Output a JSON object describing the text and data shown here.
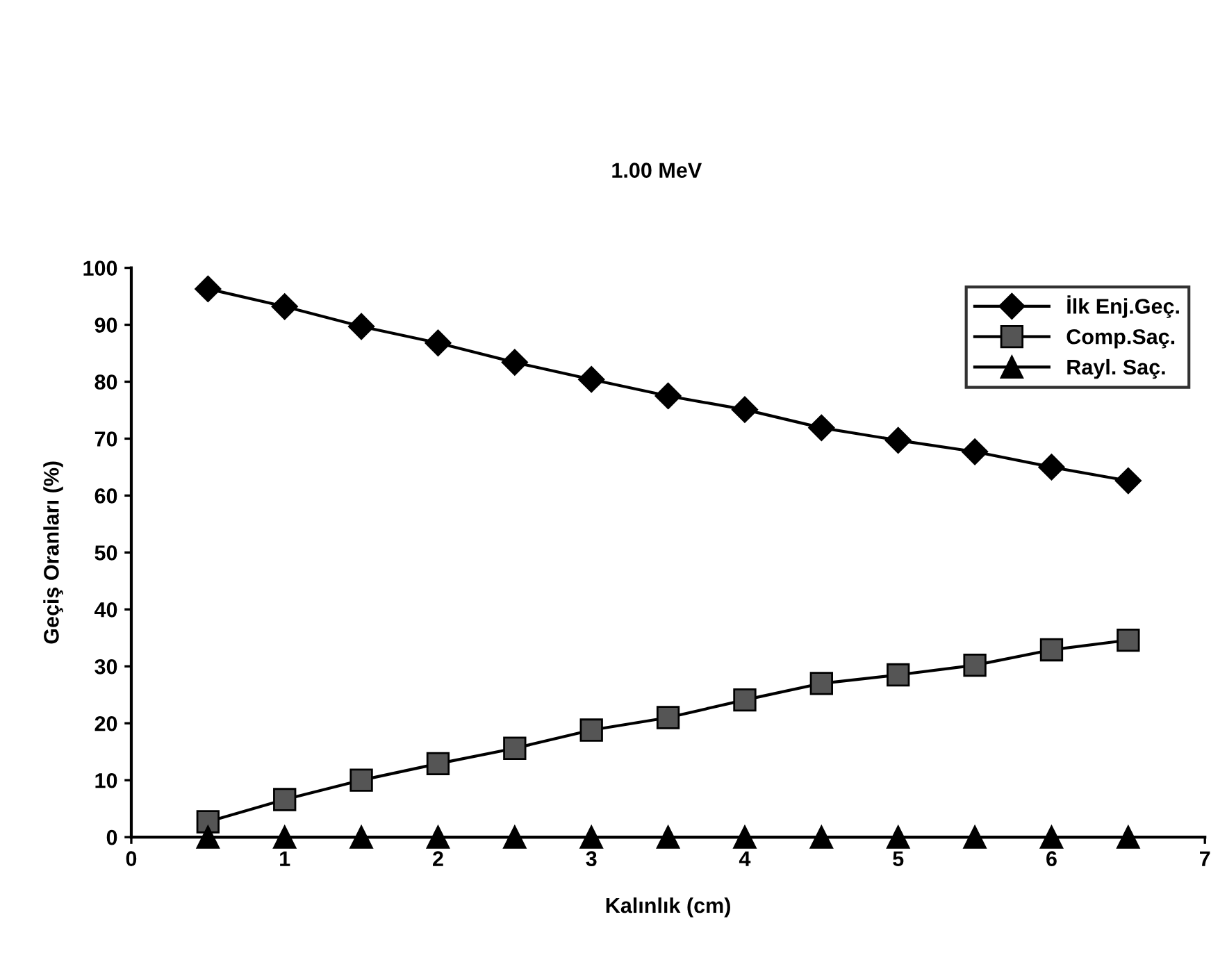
{
  "chart_data": {
    "type": "line",
    "title": "1.00 MeV",
    "xlabel": "Kalınlık (cm)",
    "ylabel": "Geçiş Oranları (%)",
    "x": [
      0.5,
      1,
      1.5,
      2,
      2.5,
      3,
      3.5,
      4,
      4.5,
      5,
      5.5,
      6,
      6.5
    ],
    "series": [
      {
        "name": "İlk Enj.Geç.",
        "color": "#000000",
        "marker": "diamond",
        "values": [
          96.3,
          93.2,
          89.7,
          86.8,
          83.4,
          80.4,
          77.5,
          75.1,
          71.9,
          69.7,
          67.7,
          65.0,
          62.6
        ]
      },
      {
        "name": "Comp.Saç.",
        "color": "#000000",
        "marker": "square",
        "values": [
          2.7,
          6.6,
          10,
          12.9,
          15.6,
          18.8,
          21,
          24.1,
          27,
          28.5,
          30.2,
          32.9,
          34.6
        ]
      },
      {
        "name": "Rayl. Saç.",
        "color": "#000000",
        "marker": "triangle",
        "values": [
          0,
          0,
          0,
          0,
          0,
          0,
          0,
          0,
          0,
          0,
          0,
          0,
          0
        ]
      }
    ],
    "xlim": [
      0,
      7
    ],
    "ylim": [
      0,
      100
    ],
    "xticks": [
      0,
      1,
      2,
      3,
      4,
      5,
      6,
      7
    ],
    "yticks": [
      0,
      10,
      20,
      30,
      40,
      50,
      60,
      70,
      80,
      90,
      100
    ],
    "grid": false,
    "legend": "top right",
    "line_style": "solid"
  }
}
